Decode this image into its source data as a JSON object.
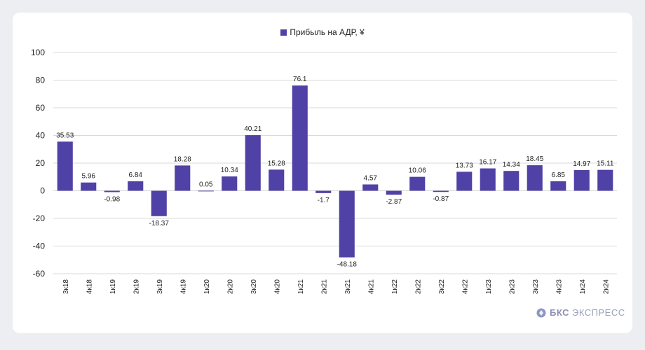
{
  "chart_data": {
    "type": "bar",
    "categories": [
      "3к18",
      "4к18",
      "1к19",
      "2к19",
      "3к19",
      "4к19",
      "1к20",
      "2к20",
      "3к20",
      "4к20",
      "1к21",
      "2к21",
      "3к21",
      "4к21",
      "1к22",
      "2к22",
      "3к22",
      "4к22",
      "1к23",
      "2к23",
      "3к23",
      "4к23",
      "1к24",
      "2к24"
    ],
    "series": [
      {
        "name": "Прибыль на АДР, ¥",
        "values": [
          35.53,
          5.96,
          -0.98,
          6.84,
          -18.37,
          18.28,
          0.05,
          10.34,
          40.21,
          15.28,
          76.1,
          -1.7,
          -48.18,
          4.57,
          -2.87,
          10.06,
          -0.87,
          13.73,
          16.17,
          14.34,
          18.45,
          6.85,
          14.97,
          15.11
        ],
        "labels": [
          "35.53",
          "5.96",
          "-0.98",
          "6.84",
          "-18.37",
          "18.28",
          "0.05",
          "10.34",
          "40.21",
          "15.28",
          "76.1",
          "-1.7",
          "-48.18",
          "4.57",
          "-2.87",
          "10.06",
          "-0.87",
          "13.73",
          "16.17",
          "14.34",
          "18.45",
          "6.85",
          "14.97",
          "15.11"
        ],
        "color": "#5041a6"
      }
    ],
    "ylim": [
      -60,
      100
    ],
    "yticks": [
      100,
      80,
      60,
      40,
      20,
      0,
      -20,
      -40,
      -60
    ],
    "grid": true,
    "legend_position": "top-center"
  },
  "legend": {
    "label": "Прибыль на АДР, ¥"
  },
  "brand": {
    "bold": "БКС",
    "name": "ЭКСПРЕСС",
    "icon": "bks-logo-icon"
  },
  "colors": {
    "bar": "#5041a6",
    "grid": "#d9d9d9",
    "text": "#222222",
    "brand": "#9aa0b8"
  }
}
